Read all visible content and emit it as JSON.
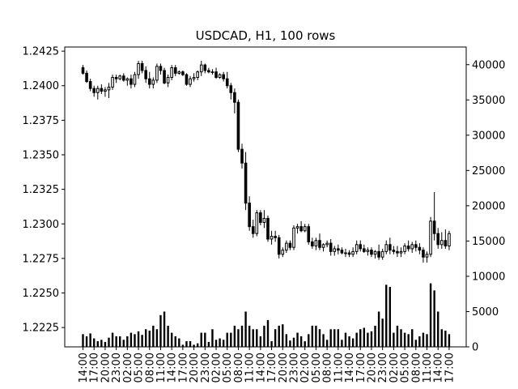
{
  "chart_data": {
    "type": "candlestick",
    "title": "USDCAD, H1, 100 rows",
    "ylim_price": [
      1.2211,
      1.2428
    ],
    "ylim_volume": [
      0,
      42500
    ],
    "yticks_price": [
      "1.2225",
      "1.2250",
      "1.2275",
      "1.2300",
      "1.2325",
      "1.2350",
      "1.2375",
      "1.2400",
      "1.2425"
    ],
    "yticks_volume": [
      "0",
      "5000",
      "10000",
      "15000",
      "20000",
      "25000",
      "30000",
      "35000",
      "40000"
    ],
    "x_tick_labels": [
      "14:00",
      "17:00",
      "20:00",
      "23:00",
      "02:00",
      "05:00",
      "08:00",
      "11:00",
      "14:00",
      "17:00",
      "20:00",
      "23:00",
      "02:00",
      "05:00",
      "08:00",
      "11:00",
      "14:00",
      "17:00",
      "20:00",
      "23:00",
      "02:00",
      "05:00",
      "08:00",
      "11:00",
      "14:00",
      "17:00",
      "20:00",
      "23:00",
      "02:00",
      "05:00",
      "08:00",
      "11:00",
      "14:00",
      "17:00"
    ],
    "x_tick_every": 3,
    "candles": [
      [
        1.2413,
        1.2415,
        1.2408,
        1.2409,
        1800
      ],
      [
        1.2409,
        1.2411,
        1.2402,
        1.2403,
        1500
      ],
      [
        1.2403,
        1.2405,
        1.2396,
        1.2398,
        1900
      ],
      [
        1.2398,
        1.24,
        1.2392,
        1.2395,
        1200
      ],
      [
        1.2395,
        1.24,
        1.239,
        1.2398,
        800
      ],
      [
        1.2398,
        1.2401,
        1.2394,
        1.2396,
        1000
      ],
      [
        1.2396,
        1.2399,
        1.2392,
        1.2397,
        700
      ],
      [
        1.2397,
        1.2402,
        1.2391,
        1.2399,
        1300
      ],
      [
        1.2399,
        1.2408,
        1.2397,
        1.2406,
        2000
      ],
      [
        1.2406,
        1.2408,
        1.2402,
        1.2405,
        1500
      ],
      [
        1.2405,
        1.2408,
        1.2404,
        1.2407,
        1500
      ],
      [
        1.2407,
        1.2409,
        1.2403,
        1.2404,
        1000
      ],
      [
        1.2404,
        1.2406,
        1.24,
        1.2405,
        1500
      ],
      [
        1.2405,
        1.2408,
        1.2398,
        1.2401,
        2000
      ],
      [
        1.2401,
        1.241,
        1.2399,
        1.2408,
        1800
      ],
      [
        1.2408,
        1.2418,
        1.2405,
        1.2416,
        2200
      ],
      [
        1.2416,
        1.2418,
        1.2409,
        1.2411,
        1700
      ],
      [
        1.2411,
        1.2414,
        1.2402,
        1.2405,
        2500
      ],
      [
        1.2405,
        1.241,
        1.2398,
        1.2401,
        2300
      ],
      [
        1.2401,
        1.2406,
        1.2398,
        1.2404,
        3000
      ],
      [
        1.2404,
        1.2416,
        1.2402,
        1.2414,
        2500
      ],
      [
        1.2414,
        1.2416,
        1.2408,
        1.2411,
        4500
      ],
      [
        1.2411,
        1.2413,
        1.2401,
        1.2402,
        5000
      ],
      [
        1.2402,
        1.2408,
        1.2399,
        1.2406,
        3000
      ],
      [
        1.2406,
        1.2415,
        1.2404,
        1.2413,
        2000
      ],
      [
        1.2413,
        1.2415,
        1.2407,
        1.2409,
        1500
      ],
      [
        1.2409,
        1.2411,
        1.2408,
        1.241,
        1200
      ],
      [
        1.241,
        1.2411,
        1.2407,
        1.2408,
        300
      ],
      [
        1.2408,
        1.2409,
        1.24,
        1.2401,
        800
      ],
      [
        1.2401,
        1.2407,
        1.2399,
        1.2405,
        800
      ],
      [
        1.2405,
        1.2409,
        1.2403,
        1.2406,
        300
      ],
      [
        1.2406,
        1.2411,
        1.2404,
        1.241,
        500
      ],
      [
        1.241,
        1.2418,
        1.2407,
        1.2415,
        2000
      ],
      [
        1.2415,
        1.2416,
        1.2409,
        1.2411,
        2000
      ],
      [
        1.2411,
        1.2413,
        1.2409,
        1.241,
        700
      ],
      [
        1.241,
        1.2412,
        1.2408,
        1.241,
        2500
      ],
      [
        1.241,
        1.2413,
        1.2405,
        1.2406,
        1000
      ],
      [
        1.2406,
        1.2409,
        1.2405,
        1.2408,
        1200
      ],
      [
        1.2408,
        1.241,
        1.2403,
        1.2405,
        1000
      ],
      [
        1.2405,
        1.241,
        1.2398,
        1.24,
        2000
      ],
      [
        1.24,
        1.2402,
        1.239,
        1.2395,
        2000
      ],
      [
        1.2395,
        1.2398,
        1.238,
        1.2388,
        3000
      ],
      [
        1.2388,
        1.239,
        1.2352,
        1.2354,
        2500
      ],
      [
        1.2354,
        1.2358,
        1.234,
        1.2344,
        3000
      ],
      [
        1.2344,
        1.2352,
        1.231,
        1.2315,
        5000
      ],
      [
        1.2315,
        1.232,
        1.2295,
        1.2298,
        3000
      ],
      [
        1.2298,
        1.2303,
        1.229,
        1.2293,
        2500
      ],
      [
        1.2293,
        1.231,
        1.2291,
        1.2308,
        2500
      ],
      [
        1.2308,
        1.231,
        1.2299,
        1.2301,
        1500
      ],
      [
        1.2301,
        1.231,
        1.2297,
        1.2304,
        3000
      ],
      [
        1.2304,
        1.2306,
        1.2287,
        1.2289,
        3800
      ],
      [
        1.2289,
        1.2295,
        1.2285,
        1.2291,
        800
      ],
      [
        1.2291,
        1.2295,
        1.2287,
        1.229,
        2500
      ],
      [
        1.229,
        1.2292,
        1.2275,
        1.2278,
        3000
      ],
      [
        1.2278,
        1.2283,
        1.2276,
        1.2281,
        3200
      ],
      [
        1.2281,
        1.2288,
        1.2279,
        1.2286,
        1800
      ],
      [
        1.2286,
        1.2288,
        1.2281,
        1.2283,
        900
      ],
      [
        1.2283,
        1.2299,
        1.2281,
        1.2297,
        1300
      ],
      [
        1.2297,
        1.23,
        1.2293,
        1.2298,
        2000
      ],
      [
        1.2298,
        1.2302,
        1.2294,
        1.2295,
        1500
      ],
      [
        1.2295,
        1.23,
        1.2294,
        1.2298,
        800
      ],
      [
        1.2298,
        1.23,
        1.2285,
        1.2287,
        1800
      ],
      [
        1.2287,
        1.229,
        1.2282,
        1.2284,
        3000
      ],
      [
        1.2284,
        1.229,
        1.2281,
        1.2288,
        3000
      ],
      [
        1.2288,
        1.2293,
        1.2281,
        1.2283,
        2500
      ],
      [
        1.2283,
        1.2286,
        1.228,
        1.2285,
        1800
      ],
      [
        1.2285,
        1.2288,
        1.2283,
        1.2286,
        1000
      ],
      [
        1.2286,
        1.2289,
        1.2277,
        1.228,
        2500
      ],
      [
        1.228,
        1.2284,
        1.2277,
        1.2282,
        2500
      ],
      [
        1.2282,
        1.2285,
        1.2278,
        1.2281,
        2500
      ],
      [
        1.2281,
        1.2283,
        1.2278,
        1.2279,
        1000
      ],
      [
        1.2279,
        1.2282,
        1.2276,
        1.2279,
        2000
      ],
      [
        1.2279,
        1.2281,
        1.2276,
        1.2278,
        1500
      ],
      [
        1.2278,
        1.2283,
        1.2276,
        1.228,
        1200
      ],
      [
        1.228,
        1.2288,
        1.2278,
        1.2285,
        2000
      ],
      [
        1.2285,
        1.2288,
        1.228,
        1.2282,
        2500
      ],
      [
        1.2282,
        1.2285,
        1.2279,
        1.228,
        2700
      ],
      [
        1.228,
        1.2283,
        1.2277,
        1.2281,
        2000
      ],
      [
        1.2281,
        1.2283,
        1.2276,
        1.2278,
        2200
      ],
      [
        1.2278,
        1.2281,
        1.2275,
        1.228,
        3000
      ],
      [
        1.228,
        1.2285,
        1.2274,
        1.2276,
        5000
      ],
      [
        1.2276,
        1.2282,
        1.2274,
        1.228,
        4000
      ],
      [
        1.228,
        1.2288,
        1.2278,
        1.2285,
        8800
      ],
      [
        1.2285,
        1.229,
        1.2278,
        1.2281,
        8500
      ],
      [
        1.2281,
        1.2284,
        1.2278,
        1.228,
        2000
      ],
      [
        1.228,
        1.2284,
        1.2276,
        1.2279,
        3000
      ],
      [
        1.2279,
        1.2283,
        1.2276,
        1.228,
        2500
      ],
      [
        1.228,
        1.2286,
        1.2278,
        1.2284,
        2000
      ],
      [
        1.2284,
        1.2288,
        1.228,
        1.2282,
        1800
      ],
      [
        1.2282,
        1.2287,
        1.2279,
        1.2285,
        2500
      ],
      [
        1.2285,
        1.2288,
        1.228,
        1.2283,
        1000
      ],
      [
        1.2283,
        1.2286,
        1.2278,
        1.2281,
        1500
      ],
      [
        1.2281,
        1.2283,
        1.2272,
        1.2276,
        2000
      ],
      [
        1.2276,
        1.228,
        1.2272,
        1.2278,
        1800
      ],
      [
        1.2278,
        1.2305,
        1.2276,
        1.2302,
        9000
      ],
      [
        1.2302,
        1.2323,
        1.2288,
        1.2293,
        8000
      ],
      [
        1.2293,
        1.2297,
        1.2282,
        1.2285,
        5000
      ],
      [
        1.2285,
        1.2294,
        1.2282,
        1.2288,
        2500
      ],
      [
        1.2288,
        1.2296,
        1.2282,
        1.2284,
        2300
      ],
      [
        1.2284,
        1.2295,
        1.2281,
        1.2293,
        1800
      ]
    ]
  }
}
